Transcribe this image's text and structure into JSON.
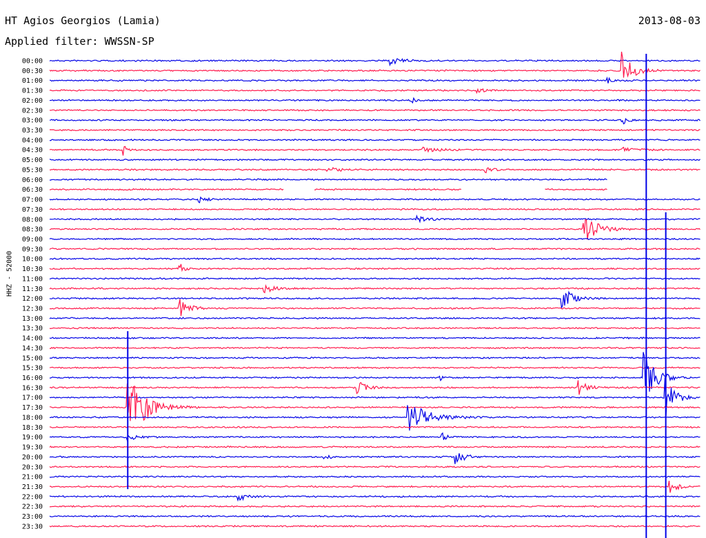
{
  "header": {
    "station": "HT Agios Georgios (Lamia)",
    "filter": "Applied filter: WWSSN-SP",
    "date": "2013-08-03"
  },
  "side_label": "HHZ - 52000",
  "colors": {
    "even_row": "#0000e6",
    "odd_row": "#ff1a4d"
  },
  "chart_data": {
    "type": "line",
    "title": "HT Agios Georgios (Lamia)",
    "subtitle": "Applied filter: WWSSN-SP",
    "ylabel": "HHZ - 52000",
    "xlabel": "",
    "rows": [
      "00:00",
      "00:30",
      "01:00",
      "01:30",
      "02:00",
      "02:30",
      "03:00",
      "03:30",
      "04:00",
      "04:30",
      "05:00",
      "05:30",
      "06:00",
      "06:30",
      "07:00",
      "07:30",
      "08:00",
      "08:30",
      "09:00",
      "09:30",
      "10:00",
      "10:30",
      "11:00",
      "11:30",
      "12:00",
      "12:30",
      "13:00",
      "13:30",
      "14:00",
      "14:30",
      "15:00",
      "15:30",
      "16:00",
      "16:30",
      "17:00",
      "17:30",
      "18:00",
      "18:30",
      "19:00",
      "19:30",
      "20:00",
      "20:30",
      "21:00",
      "21:30",
      "22:00",
      "22:30",
      "23:00",
      "23:30"
    ],
    "row_minutes": 30,
    "x_range_minutes": [
      0,
      30
    ],
    "grid": false,
    "events": [
      {
        "row": "00:00",
        "minute": 15.7,
        "amp": 0.35,
        "dur": 1.0
      },
      {
        "row": "00:30",
        "minute": 26.4,
        "amp": 2.2,
        "dur": 0.8
      },
      {
        "row": "01:00",
        "minute": 25.7,
        "amp": 0.3,
        "dur": 0.4
      },
      {
        "row": "01:30",
        "minute": 19.7,
        "amp": 0.4,
        "dur": 0.4
      },
      {
        "row": "02:00",
        "minute": 16.6,
        "amp": 0.3,
        "dur": 0.6
      },
      {
        "row": "03:00",
        "minute": 26.4,
        "amp": 0.5,
        "dur": 0.4
      },
      {
        "row": "04:30",
        "minute": 3.4,
        "amp": 0.6,
        "dur": 0.3
      },
      {
        "row": "04:30",
        "minute": 17.2,
        "amp": 0.3,
        "dur": 1.2
      },
      {
        "row": "04:30",
        "minute": 26.4,
        "amp": 0.3,
        "dur": 1.0
      },
      {
        "row": "05:30",
        "minute": 12.8,
        "amp": 0.3,
        "dur": 0.8
      },
      {
        "row": "05:30",
        "minute": 20.1,
        "amp": 0.3,
        "dur": 0.6
      },
      {
        "row": "07:00",
        "minute": 6.9,
        "amp": 0.35,
        "dur": 0.6
      },
      {
        "row": "08:00",
        "minute": 16.9,
        "amp": 0.3,
        "dur": 0.9
      },
      {
        "row": "08:30",
        "minute": 24.6,
        "amp": 1.5,
        "dur": 1.2
      },
      {
        "row": "10:30",
        "minute": 6.0,
        "amp": 0.6,
        "dur": 0.3
      },
      {
        "row": "11:30",
        "minute": 9.9,
        "amp": 0.4,
        "dur": 0.9
      },
      {
        "row": "12:00",
        "minute": 23.6,
        "amp": 1.3,
        "dur": 0.8
      },
      {
        "row": "12:30",
        "minute": 6.0,
        "amp": 0.9,
        "dur": 0.8
      },
      {
        "row": "16:00",
        "minute": 27.4,
        "amp": 3.0,
        "dur": 0.9
      },
      {
        "row": "16:00",
        "minute": 18.0,
        "amp": 0.5,
        "dur": 0.2
      },
      {
        "row": "16:30",
        "minute": 14.2,
        "amp": 0.8,
        "dur": 0.6
      },
      {
        "row": "16:30",
        "minute": 24.4,
        "amp": 0.8,
        "dur": 0.6
      },
      {
        "row": "17:00",
        "minute": 28.4,
        "amp": 2.0,
        "dur": 0.8
      },
      {
        "row": "17:30",
        "minute": 3.6,
        "amp": 3.5,
        "dur": 1.4
      },
      {
        "row": "18:00",
        "minute": 16.5,
        "amp": 1.8,
        "dur": 1.5
      },
      {
        "row": "19:00",
        "minute": 3.6,
        "amp": 0.4,
        "dur": 0.6
      },
      {
        "row": "19:00",
        "minute": 18.1,
        "amp": 0.5,
        "dur": 0.5
      },
      {
        "row": "20:00",
        "minute": 18.7,
        "amp": 0.8,
        "dur": 0.8
      },
      {
        "row": "20:00",
        "minute": 12.6,
        "amp": 0.4,
        "dur": 0.5
      },
      {
        "row": "21:30",
        "minute": 28.6,
        "amp": 0.7,
        "dur": 0.6
      },
      {
        "row": "22:00",
        "minute": 8.7,
        "amp": 0.5,
        "dur": 0.6
      }
    ],
    "gaps": [
      {
        "row": "06:00",
        "start_minute": 25.7,
        "end_minute": 30
      },
      {
        "row": "06:30",
        "start_minute": 10.8,
        "end_minute": 12.2
      },
      {
        "row": "06:30",
        "start_minute": 19.0,
        "end_minute": 22.8
      },
      {
        "row": "06:30",
        "start_minute": 25.7,
        "end_minute": 30
      }
    ],
    "spikes": [
      {
        "row_start": "00:00",
        "row_end": "23:30",
        "minute": 27.5
      },
      {
        "row_start": "08:00",
        "row_end": "23:30",
        "minute": 28.4
      },
      {
        "row_start": "14:00",
        "row_end": "21:00",
        "minute": 3.6
      }
    ]
  }
}
